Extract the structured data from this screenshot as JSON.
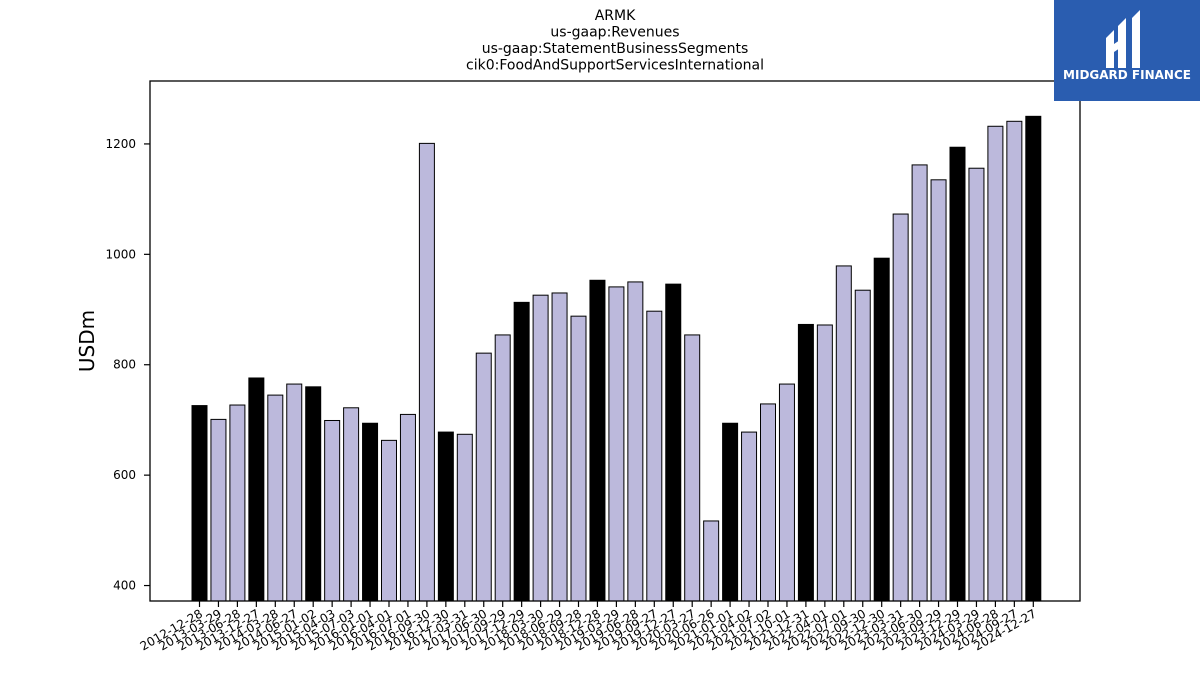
{
  "chart_data": {
    "type": "bar",
    "title": [
      "ARMK",
      "us-gaap:Revenues",
      "us-gaap:StatementBusinessSegments",
      "cik0:FoodAndSupportServicesInternational"
    ],
    "xlabel": "",
    "ylabel": "USDm",
    "ylim": [
      372,
      1314
    ],
    "yticks": [
      400,
      600,
      800,
      1000,
      1200
    ],
    "categories": [
      "2012-12-28",
      "2013-03-29",
      "2013-06-28",
      "2013-12-27",
      "2014-03-28",
      "2014-06-27",
      "2015-01-02",
      "2015-04-03",
      "2015-07-03",
      "2016-01-01",
      "2016-04-01",
      "2016-07-01",
      "2016-09-30",
      "2016-12-30",
      "2017-03-31",
      "2017-06-30",
      "2017-09-29",
      "2017-12-29",
      "2018-03-30",
      "2018-06-29",
      "2018-09-28",
      "2018-12-28",
      "2019-03-29",
      "2019-06-28",
      "2019-09-27",
      "2019-12-27",
      "2020-03-27",
      "2020-06-26",
      "2021-01-01",
      "2021-04-02",
      "2021-07-02",
      "2021-10-01",
      "2021-12-31",
      "2022-04-01",
      "2022-07-01",
      "2022-09-30",
      "2022-12-30",
      "2023-03-31",
      "2023-06-30",
      "2023-09-29",
      "2023-12-29",
      "2024-03-29",
      "2024-06-28",
      "2024-09-27",
      "2024-12-27"
    ],
    "values": [
      726,
      701,
      727,
      776,
      745,
      765,
      760,
      699,
      722,
      694,
      663,
      710,
      1201,
      678,
      674,
      821,
      854,
      913,
      926,
      930,
      888,
      953,
      941,
      950,
      897,
      946,
      854,
      517,
      694,
      678,
      729,
      765,
      873,
      872,
      979,
      935,
      993,
      1073,
      1162,
      1135,
      1194,
      1156,
      1232,
      1241,
      1250
    ],
    "highlighted": [
      true,
      false,
      false,
      true,
      false,
      false,
      true,
      false,
      false,
      true,
      false,
      false,
      false,
      true,
      false,
      false,
      false,
      true,
      false,
      false,
      false,
      true,
      false,
      false,
      false,
      true,
      false,
      false,
      true,
      false,
      false,
      false,
      true,
      false,
      false,
      false,
      true,
      false,
      false,
      false,
      true,
      false,
      false,
      false,
      true
    ],
    "colors": {
      "normal": "#bcb9dc",
      "highlight": "#000000",
      "edge": "#000000"
    },
    "grid": false
  },
  "logo": {
    "text": "MIDGARD FINANCE",
    "color": "#2a5db0"
  }
}
